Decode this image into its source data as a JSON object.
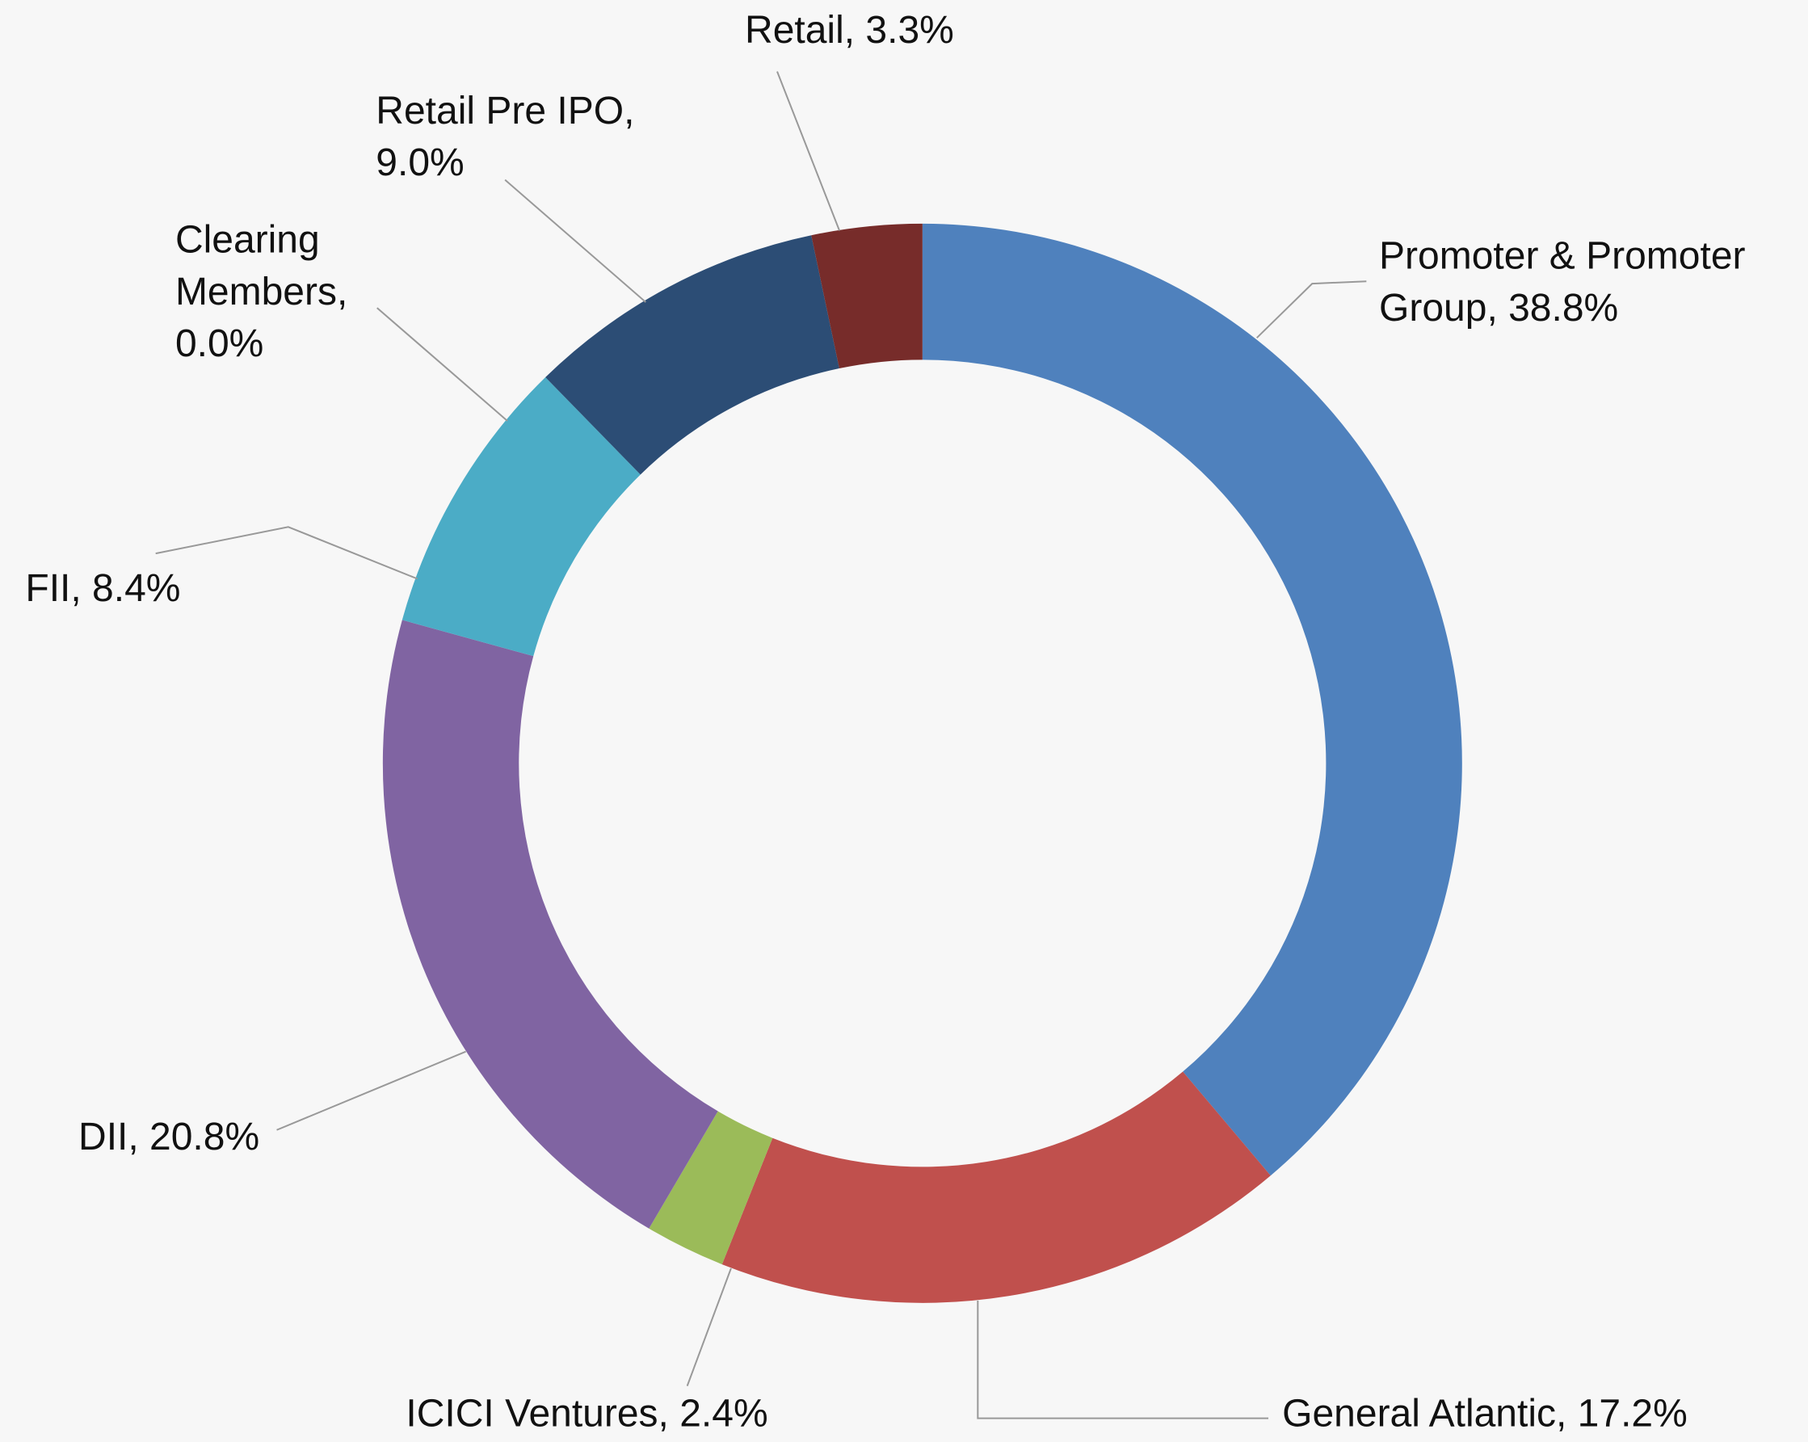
{
  "chart_data": {
    "type": "donut",
    "labels": [
      [
        "Promoter & Promoter",
        "Group, 38.8%"
      ],
      [
        "General Atlantic, 17.2%"
      ],
      [
        "ICICI Ventures, 2.4%"
      ],
      [
        "DII, 20.8%"
      ],
      [
        "FII, 8.4%"
      ],
      [
        "Clearing",
        "Members,",
        "0.0%"
      ],
      [
        "Retail Pre IPO,",
        "9.0%"
      ],
      [
        "Retail, 3.3%"
      ]
    ],
    "values": [
      38.8,
      17.2,
      2.4,
      20.8,
      8.4,
      0.0,
      9.0,
      3.3
    ],
    "colors": [
      "#4f81bd",
      "#c0504d",
      "#9bbb59",
      "#8064a2",
      "#4bacc6",
      "#f79646",
      "#2c4d75",
      "#772c2a"
    ]
  }
}
